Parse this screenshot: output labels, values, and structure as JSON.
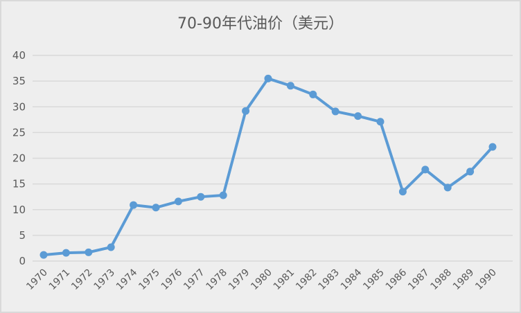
{
  "chart_data": {
    "type": "line",
    "title": "70-90年代油价（美元）",
    "xlabel": "",
    "ylabel": "",
    "ylim": [
      0,
      40
    ],
    "yticks": [
      0,
      5,
      10,
      15,
      20,
      25,
      30,
      35,
      40
    ],
    "grid": true,
    "legend": "none",
    "categories": [
      "1970",
      "1971",
      "1972",
      "1973",
      "1974",
      "1975",
      "1976",
      "1977",
      "1978",
      "1979",
      "1980",
      "1981",
      "1982",
      "1983",
      "1984",
      "1985",
      "1986",
      "1987",
      "1988",
      "1989",
      "1990"
    ],
    "series": [
      {
        "name": "油价",
        "color": "#5b9bd5",
        "values": [
          1.2,
          1.6,
          1.7,
          2.7,
          10.9,
          10.4,
          11.6,
          12.5,
          12.8,
          29.2,
          35.5,
          34.1,
          32.4,
          29.1,
          28.2,
          27.1,
          13.5,
          17.8,
          14.3,
          17.4,
          22.2
        ]
      }
    ]
  },
  "colors": {
    "background": "#eeeeee",
    "gridline": "#d9d9d9",
    "text": "#595959",
    "series": "#5b9bd5"
  }
}
